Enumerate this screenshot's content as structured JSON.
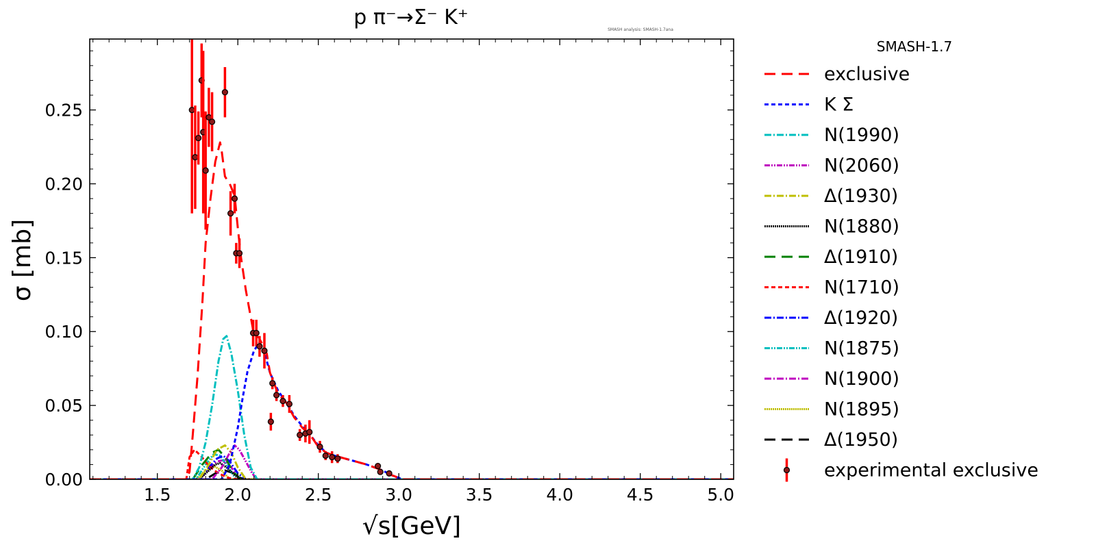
{
  "chart_data": {
    "type": "line",
    "title": "p π⁻→Σ⁻ K⁺",
    "watermark": "SMASH analysis: SMASH-1.7ana",
    "xlabel_sqrt": "√s",
    "xlabel": "[GeV]",
    "ylabel": "σ [mb]",
    "xlim": [
      1.08,
      5.08
    ],
    "ylim": [
      0.0,
      0.298
    ],
    "xticks": [
      "1.5",
      "2.0",
      "2.5",
      "3.0",
      "3.5",
      "4.0",
      "4.5",
      "5.0"
    ],
    "yticks": [
      "0.00",
      "0.05",
      "0.10",
      "0.15",
      "0.20",
      "0.25"
    ],
    "legend_title": "SMASH-1.7",
    "legend_position": "outside right",
    "series": [
      {
        "name": "exclusive",
        "color": "#ff0000",
        "dash": "16,9",
        "x": [
          1.08,
          1.68,
          1.7,
          1.72,
          1.75,
          1.78,
          1.8,
          1.83,
          1.86,
          1.89,
          1.9,
          1.92,
          1.95,
          1.98,
          2.0,
          2.02,
          2.05,
          2.08,
          2.1,
          2.13,
          2.15,
          2.18,
          2.2,
          2.25,
          2.3,
          2.35,
          2.4,
          2.45,
          2.5,
          2.55,
          2.6,
          2.7,
          2.8,
          2.9,
          2.95,
          3.0,
          3.02,
          5.08
        ],
        "y": [
          0,
          0,
          0.005,
          0.03,
          0.07,
          0.12,
          0.16,
          0.19,
          0.215,
          0.228,
          0.222,
          0.205,
          0.2,
          0.192,
          0.17,
          0.15,
          0.128,
          0.11,
          0.098,
          0.096,
          0.092,
          0.085,
          0.072,
          0.058,
          0.052,
          0.042,
          0.035,
          0.03,
          0.022,
          0.018,
          0.016,
          0.013,
          0.01,
          0.006,
          0.003,
          0.001,
          0,
          0
        ]
      },
      {
        "name": "K Σ",
        "color": "#0000ff",
        "dash": "6,4",
        "x": [
          1.08,
          1.9,
          1.95,
          2.0,
          2.03,
          2.06,
          2.1,
          2.13,
          2.16,
          2.2,
          2.25,
          2.3,
          2.35,
          2.4,
          2.45,
          2.5,
          2.55,
          2.6,
          2.7,
          2.8,
          2.9,
          2.95,
          3.0,
          3.02,
          5.08
        ],
        "y": [
          0,
          0,
          0.01,
          0.035,
          0.055,
          0.073,
          0.087,
          0.092,
          0.088,
          0.072,
          0.06,
          0.052,
          0.043,
          0.036,
          0.03,
          0.023,
          0.018,
          0.016,
          0.013,
          0.01,
          0.006,
          0.003,
          0.001,
          0,
          0
        ]
      },
      {
        "name": "N(1990)",
        "color": "#00bfbf",
        "dash": "10,3,2,3",
        "x": [
          1.08,
          1.72,
          1.76,
          1.8,
          1.84,
          1.88,
          1.91,
          1.93,
          1.96,
          2.0,
          2.04,
          2.08,
          2.12,
          5.08
        ],
        "y": [
          0,
          0,
          0.008,
          0.025,
          0.05,
          0.08,
          0.095,
          0.097,
          0.085,
          0.06,
          0.03,
          0.008,
          0,
          0
        ]
      },
      {
        "name": "N(2060)",
        "color": "#bf00bf",
        "dash": "8,2,2,2,2,2",
        "x": [
          1.08,
          1.84,
          1.9,
          1.95,
          1.98,
          2.01,
          2.05,
          2.09,
          2.12,
          5.08
        ],
        "y": [
          0,
          0,
          0.008,
          0.018,
          0.023,
          0.02,
          0.012,
          0.004,
          0,
          0
        ]
      },
      {
        "name": "Δ(1930)",
        "color": "#bfbf00",
        "dash": "10,3,2,3",
        "x": [
          1.08,
          1.76,
          1.82,
          1.87,
          1.92,
          1.96,
          2.0,
          2.05,
          5.08
        ],
        "y": [
          0,
          0,
          0.01,
          0.02,
          0.023,
          0.018,
          0.008,
          0,
          0
        ]
      },
      {
        "name": "N(1880)",
        "color": "#000000",
        "dash": "2,1",
        "x": [
          1.08,
          1.76,
          1.82,
          1.86,
          1.89,
          1.93,
          1.98,
          2.02,
          5.08
        ],
        "y": [
          0,
          0,
          0.006,
          0.01,
          0.011,
          0.008,
          0.003,
          0,
          0
        ]
      },
      {
        "name": "Δ(1910)",
        "color": "#008000",
        "dash": "16,9",
        "x": [
          1.08,
          1.72,
          1.78,
          1.84,
          1.88,
          1.92,
          1.97,
          2.02,
          5.08
        ],
        "y": [
          0,
          0,
          0.01,
          0.018,
          0.02,
          0.015,
          0.005,
          0,
          0
        ]
      },
      {
        "name": "N(1710)",
        "color": "#ff0000",
        "dash": "6,4",
        "x": [
          1.08,
          1.68,
          1.7,
          1.73,
          1.77,
          1.82,
          1.88,
          1.94,
          2.0,
          5.08
        ],
        "y": [
          0,
          0,
          0.015,
          0.02,
          0.016,
          0.009,
          0.004,
          0.001,
          0,
          0
        ]
      },
      {
        "name": "Δ(1920)",
        "color": "#0000ff",
        "dash": "10,3,2,3",
        "x": [
          1.08,
          1.76,
          1.82,
          1.87,
          1.91,
          1.95,
          2.0,
          2.05,
          5.08
        ],
        "y": [
          0,
          0,
          0.008,
          0.014,
          0.016,
          0.012,
          0.004,
          0,
          0
        ]
      },
      {
        "name": "N(1875)",
        "color": "#00bfbf",
        "dash": "8,2,2,2,2,2",
        "x": [
          1.08,
          1.74,
          1.8,
          1.85,
          1.89,
          1.94,
          1.99,
          5.08
        ],
        "y": [
          0,
          0,
          0.01,
          0.017,
          0.016,
          0.008,
          0,
          0
        ]
      },
      {
        "name": "N(1900)",
        "color": "#bf00bf",
        "dash": "10,3,2,3",
        "x": [
          1.08,
          1.76,
          1.82,
          1.87,
          1.91,
          1.96,
          2.01,
          5.08
        ],
        "y": [
          0,
          0,
          0.007,
          0.012,
          0.013,
          0.008,
          0,
          0
        ]
      },
      {
        "name": "N(1895)",
        "color": "#bfbf00",
        "dash": "2,1",
        "x": [
          1.08,
          1.74,
          1.8,
          1.85,
          1.9,
          1.95,
          5.08
        ],
        "y": [
          0,
          0,
          0.006,
          0.009,
          0.006,
          0,
          0
        ]
      },
      {
        "name": "Δ(1950)",
        "color": "#000000",
        "dash": "16,9",
        "x": [
          1.08,
          1.8,
          1.86,
          1.92,
          1.98,
          2.03,
          5.08
        ],
        "y": [
          0,
          0,
          0.004,
          0.006,
          0.004,
          0,
          0
        ]
      }
    ],
    "experimental": {
      "name": "experimental exclusive",
      "color": "#ff0000",
      "marker_color": "#8b1a1a",
      "x": [
        1.715,
        1.735,
        1.755,
        1.775,
        1.785,
        1.8,
        1.82,
        1.84,
        1.92,
        1.955,
        1.98,
        1.99,
        2.01,
        2.095,
        2.115,
        2.135,
        2.165,
        2.205,
        2.215,
        2.24,
        2.28,
        2.32,
        2.385,
        2.42,
        2.445,
        2.51,
        2.545,
        2.585,
        2.62,
        2.87,
        2.885,
        2.94
      ],
      "y": [
        0.25,
        0.218,
        0.231,
        0.27,
        0.235,
        0.209,
        0.245,
        0.242,
        0.262,
        0.18,
        0.19,
        0.153,
        0.153,
        0.099,
        0.099,
        0.09,
        0.087,
        0.039,
        0.065,
        0.057,
        0.053,
        0.051,
        0.03,
        0.031,
        0.032,
        0.022,
        0.016,
        0.015,
        0.014,
        0.009,
        0.005,
        0.004
      ],
      "yerr": [
        0.07,
        0.035,
        0.018,
        0.025,
        0.055,
        0.04,
        0.02,
        0.02,
        0.017,
        0.015,
        0.01,
        0.007,
        0.01,
        0.009,
        0.009,
        0.007,
        0.012,
        0.006,
        0.004,
        0.004,
        0.004,
        0.006,
        0.004,
        0.006,
        0.008,
        0.004,
        0.003,
        0.004,
        0.003,
        0.002,
        0.002,
        0.002
      ]
    }
  }
}
